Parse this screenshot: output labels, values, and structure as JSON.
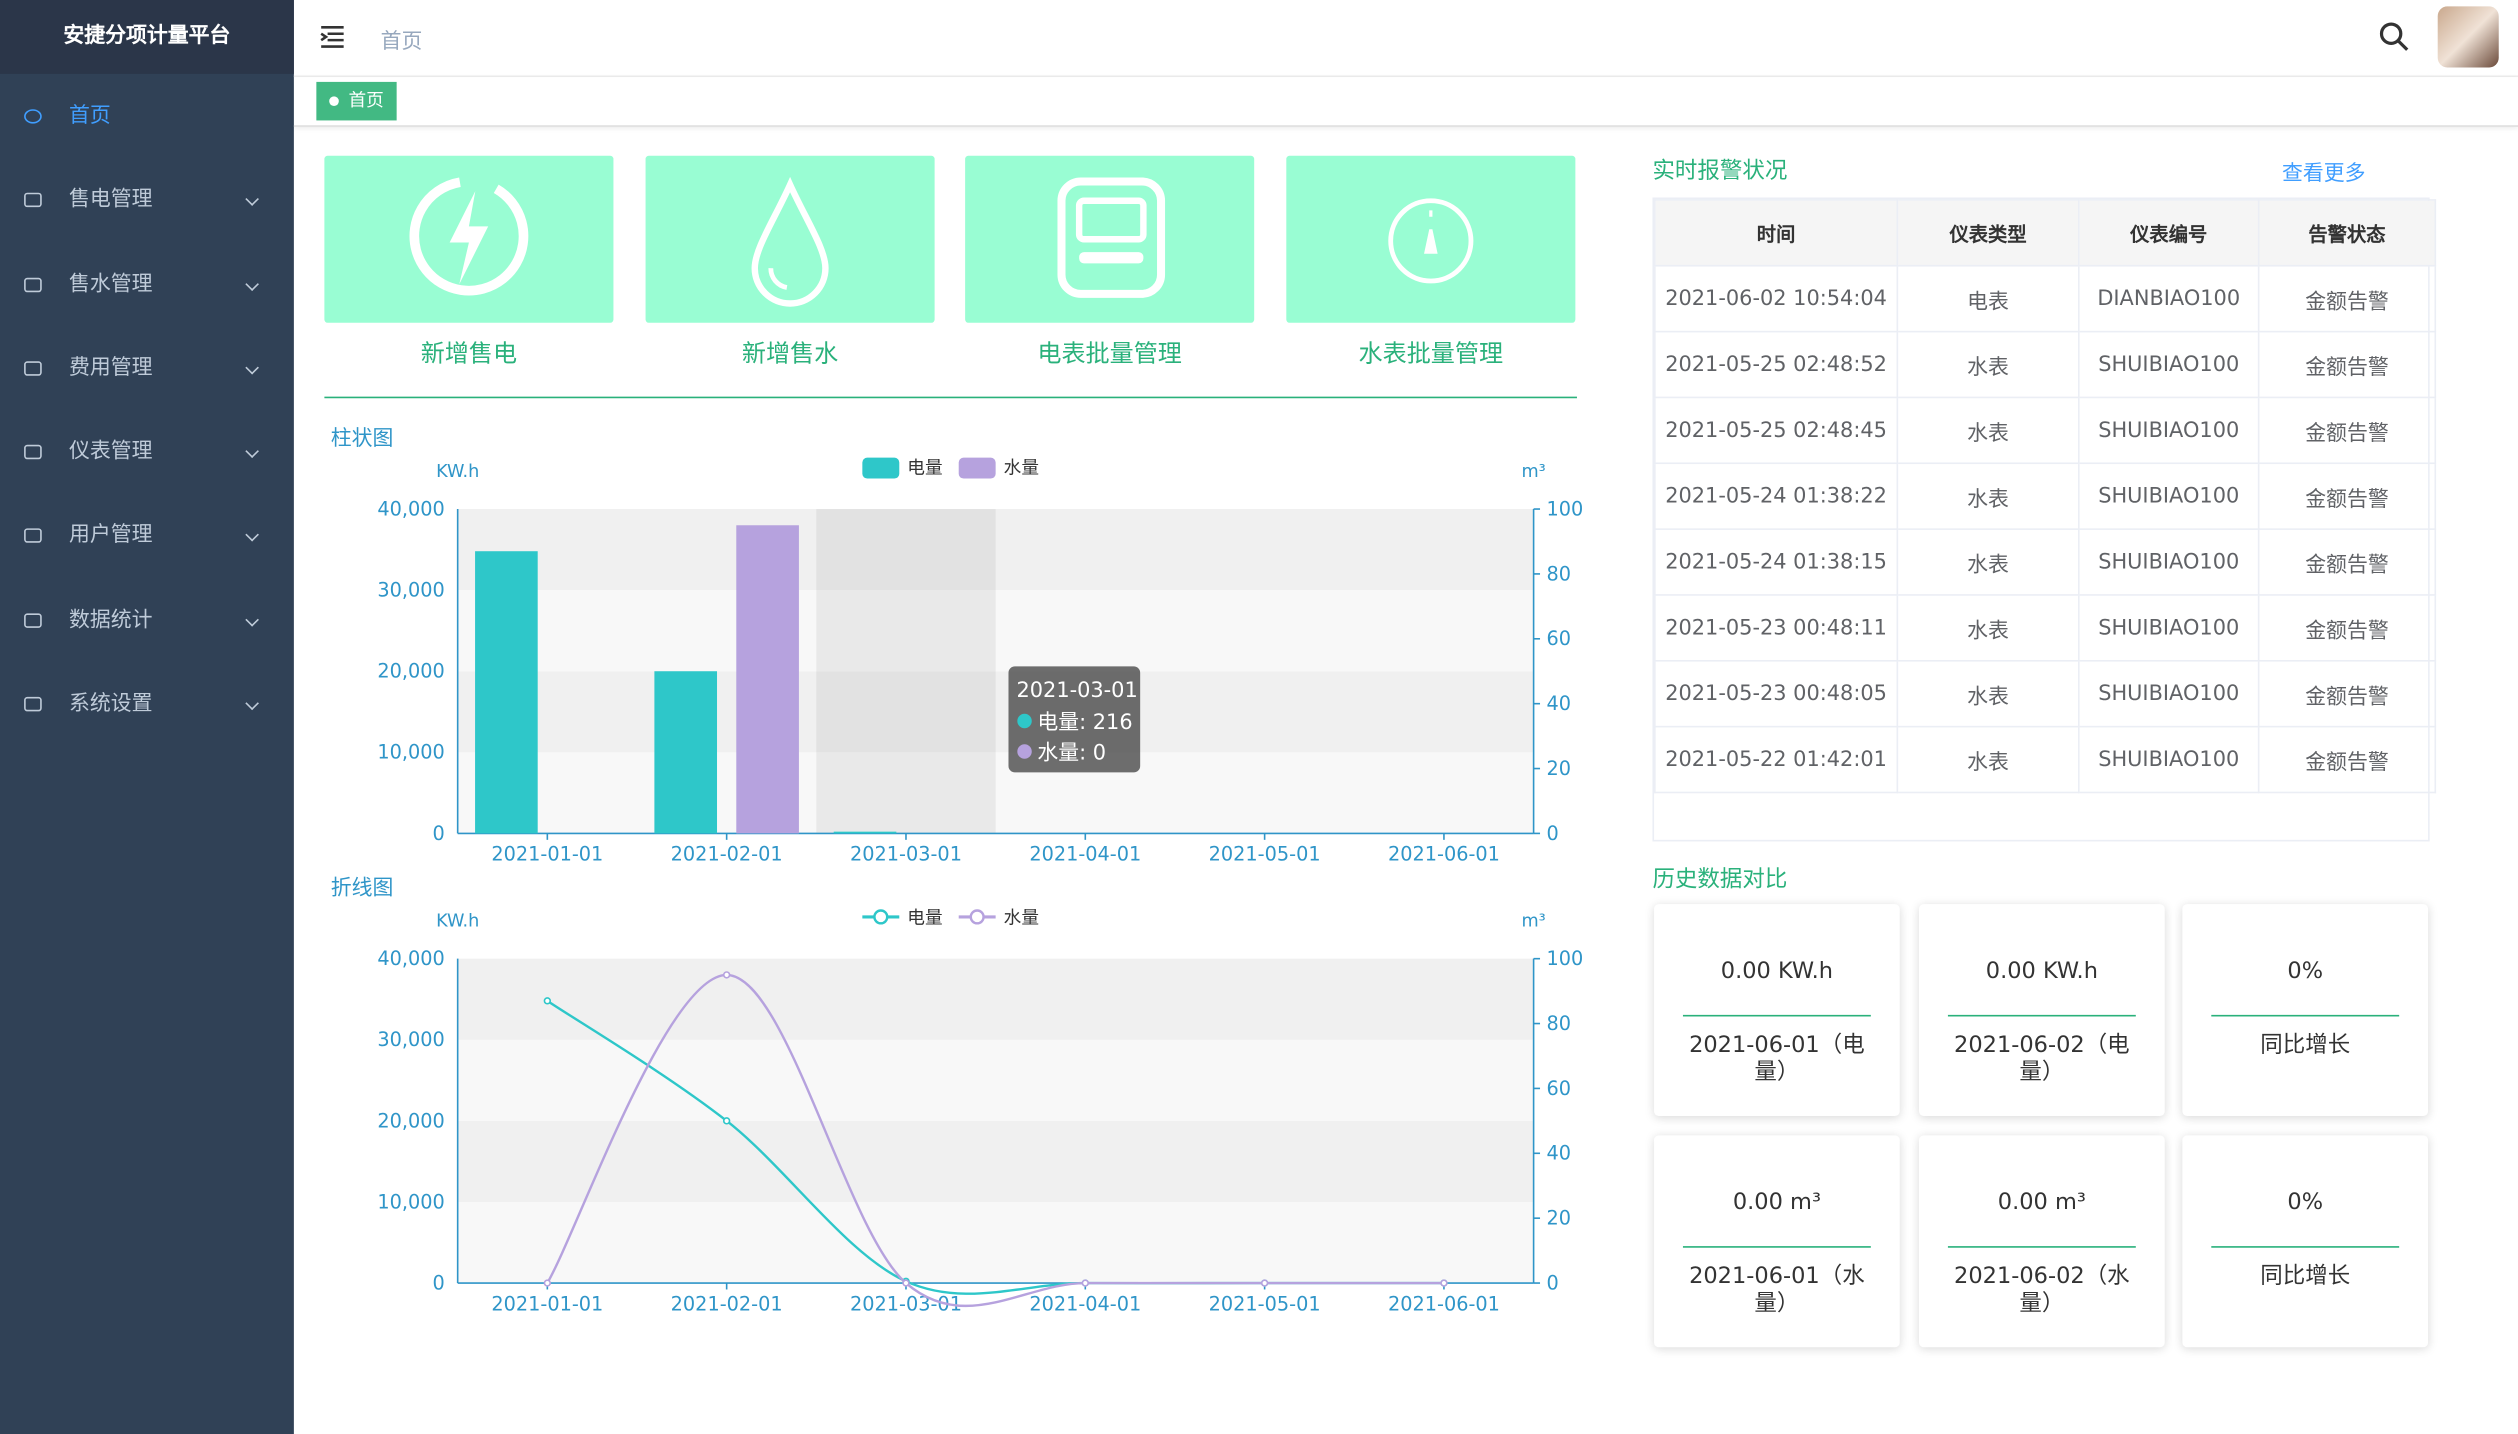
{
  "sidebar": {
    "title": "安捷分项计量平台",
    "menu": [
      "首页",
      "售电管理",
      "售水管理",
      "费用管理",
      "仪表管理",
      "用户管理",
      "数据统计",
      "系统设置"
    ]
  },
  "header": {
    "breadcrumb": "首页",
    "tag": "首页"
  },
  "actions": [
    "新增售电",
    "新增售水",
    "电表批量管理",
    "水表批量管理"
  ],
  "chart_data": [
    {
      "type": "bar",
      "title": "柱状图",
      "y_label": "KW.h",
      "y2_label": "m³",
      "categories": [
        "2021-01-01",
        "2021-02-01",
        "2021-03-01",
        "2021-04-01",
        "2021-05-01",
        "2021-06-01"
      ],
      "series": [
        {
          "name": "电量",
          "color": "#2ec7c9",
          "values": [
            34800,
            20000,
            216,
            0,
            0,
            0
          ]
        },
        {
          "name": "水量",
          "color": "#b6a2de",
          "axis": "y2",
          "values": [
            0,
            95,
            0,
            0,
            0,
            0
          ]
        }
      ],
      "ylim": [
        0,
        40000
      ],
      "yticks": [
        0,
        {
          "value": 10000,
          "label": "10,000"
        },
        {
          "value": 20000,
          "label": "20,000"
        },
        {
          "value": 30000,
          "label": "30,000"
        },
        {
          "value": 40000,
          "label": "40,000"
        }
      ],
      "y2lim": [
        0,
        100
      ],
      "y2ticks": [
        0,
        20,
        40,
        60,
        80,
        100
      ],
      "grid": true,
      "tooltip": {
        "title": "2021-03-01",
        "items": [
          "电量: 216",
          "水量: 0"
        ]
      }
    },
    {
      "type": "line",
      "title": "折线图",
      "y_label": "KW.h",
      "y2_label": "m³",
      "categories": [
        "2021-01-01",
        "2021-02-01",
        "2021-03-01",
        "2021-04-01",
        "2021-05-01",
        "2021-06-01"
      ],
      "series": [
        {
          "name": "电量",
          "color": "#2ec7c9",
          "values": [
            34800,
            20000,
            216,
            0,
            0,
            0
          ]
        },
        {
          "name": "水量",
          "color": "#b6a2de",
          "axis": "y2",
          "values": [
            0,
            95,
            0,
            0,
            0,
            0
          ]
        }
      ],
      "ylim": [
        0,
        40000
      ],
      "yticks": [
        0,
        {
          "value": 10000,
          "label": "10,000"
        },
        {
          "value": 20000,
          "label": "20,000"
        },
        {
          "value": 30000,
          "label": "30,000"
        },
        {
          "value": 40000,
          "label": "40,000"
        }
      ],
      "y2lim": [
        0,
        100
      ],
      "y2ticks": [
        0,
        20,
        40,
        60,
        80,
        100
      ],
      "grid": true
    }
  ],
  "alerts": {
    "title": "实时报警状况",
    "more": "查看更多",
    "columns": [
      "时间",
      "仪表类型",
      "仪表编号",
      "告警状态"
    ],
    "rows": [
      [
        "2021-06-02 10:54:04",
        "电表",
        "DIANBIAO100",
        "金额告警"
      ],
      [
        "2021-05-25 02:48:52",
        "水表",
        "SHUIBIAO100",
        "金额告警"
      ],
      [
        "2021-05-25 02:48:45",
        "水表",
        "SHUIBIAO100",
        "金额告警"
      ],
      [
        "2021-05-24 01:38:22",
        "水表",
        "SHUIBIAO100",
        "金额告警"
      ],
      [
        "2021-05-24 01:38:15",
        "水表",
        "SHUIBIAO100",
        "金额告警"
      ],
      [
        "2021-05-23 00:48:11",
        "水表",
        "SHUIBIAO100",
        "金额告警"
      ],
      [
        "2021-05-23 00:48:05",
        "水表",
        "SHUIBIAO100",
        "金额告警"
      ],
      [
        "2021-05-22 01:42:01",
        "水表",
        "SHUIBIAO100",
        "金额告警"
      ]
    ]
  },
  "history": {
    "title": "历史数据对比",
    "cards": [
      {
        "value": "0.00 KW.h",
        "label": "2021-06-01（电量）"
      },
      {
        "value": "0.00 KW.h",
        "label": "2021-06-02（电量）"
      },
      {
        "value": "0%",
        "label": "同比增长"
      },
      {
        "value": "0.00 m³",
        "label": "2021-06-01（水量）"
      },
      {
        "value": "0.00 m³",
        "label": "2021-06-02（水量）"
      },
      {
        "value": "0%",
        "label": "同比增长"
      }
    ]
  }
}
